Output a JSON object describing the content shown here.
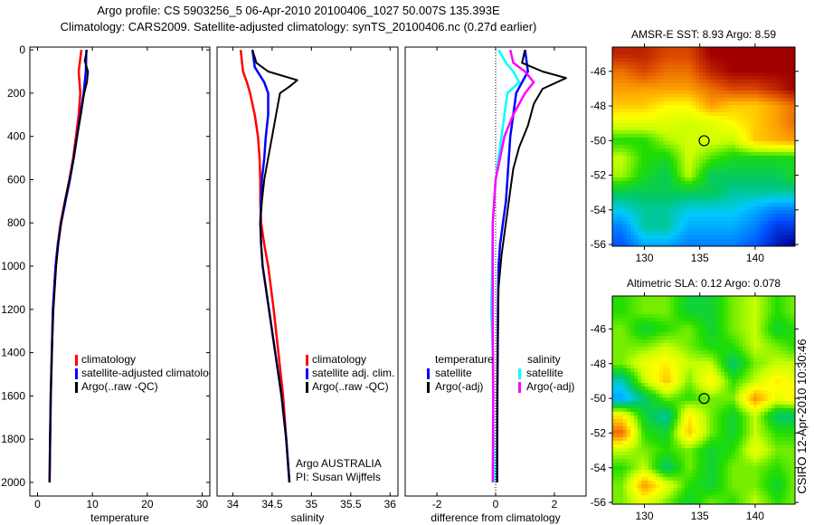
{
  "header": {
    "title_line1": "Argo profile: CS 5903256_5 06-Apr-2010 20100406_1027 50.007S 135.393E",
    "title_line2": "Climatology: CARS2009. Satellite-adjusted climatology: synTS_20100406.nc (0.27d earlier)"
  },
  "legends": {
    "temperature": [
      "climatology",
      "satellite-adjusted climatology",
      "Argo(..raw -QC)"
    ],
    "salinity": [
      "climatology",
      "satellite adj. clim.",
      "Argo(..raw -QC)"
    ],
    "difference": {
      "temp_heading": "temperature",
      "temp_items": [
        "satellite",
        "Argo(-adj)"
      ],
      "sal_heading": "salinity",
      "sal_items": [
        "satellite",
        "Argo(-adj)"
      ]
    },
    "credit_line1": "Argo AUSTRALIA",
    "credit_line2": "PI: Susan Wijffels"
  },
  "footer": {
    "timestamp": "CSIRO 12-Apr-2010 10:30:46"
  },
  "colors": {
    "red": "#ff0000",
    "blue": "#0000ff",
    "black": "#000000",
    "cyan": "#00ffff",
    "magenta": "#ff00ff"
  },
  "chart_data": [
    {
      "type": "line",
      "xlabel": "temperature",
      "ylabel": "",
      "xlim": [
        -1.4,
        31.4
      ],
      "ylim": [
        2063,
        -13
      ],
      "xticks": [
        0,
        10,
        20,
        30
      ],
      "yticks": [
        0,
        200,
        400,
        600,
        800,
        1000,
        1200,
        1400,
        1600,
        1800,
        2000
      ],
      "series": [
        {
          "name": "climatology",
          "color": "#ff0000",
          "depth": [
            0,
            100,
            200,
            300,
            400,
            500,
            600,
            700,
            800,
            900,
            1000,
            1200,
            1400,
            1600,
            1800,
            2000
          ],
          "values": [
            8.0,
            7.5,
            7.8,
            7.5,
            7.0,
            6.5,
            5.8,
            5.0,
            4.2,
            3.7,
            3.3,
            2.8,
            2.6,
            2.4,
            2.3,
            2.2
          ]
        },
        {
          "name": "satellite-adjusted climatology",
          "color": "#0000ff",
          "depth": [
            0,
            100,
            200,
            300,
            400,
            500,
            600,
            700,
            800,
            900,
            1000,
            1200,
            1400,
            1600,
            1800,
            2000
          ],
          "values": [
            8.9,
            8.8,
            8.4,
            7.8,
            7.2,
            6.6,
            5.9,
            5.1,
            4.3,
            3.7,
            3.3,
            2.8,
            2.6,
            2.4,
            2.3,
            2.2
          ]
        },
        {
          "name": "Argo(..raw -QC)",
          "color": "#000000",
          "depth": [
            0,
            50,
            100,
            150,
            200,
            300,
            400,
            500,
            600,
            700,
            800,
            900,
            1000,
            1200,
            1400,
            1600,
            1800,
            2000
          ],
          "values": [
            9.0,
            8.6,
            9.2,
            9.0,
            8.5,
            7.9,
            7.2,
            6.6,
            5.8,
            5.0,
            4.3,
            3.8,
            3.4,
            2.9,
            2.6,
            2.4,
            2.3,
            2.2
          ]
        }
      ]
    },
    {
      "type": "line",
      "xlabel": "salinity",
      "ylabel": "",
      "xlim": [
        33.8,
        36.1
      ],
      "ylim": [
        2063,
        -13
      ],
      "xticks": [
        34,
        34.5,
        35,
        35.5,
        36
      ],
      "yticks": [],
      "series": [
        {
          "name": "climatology",
          "color": "#ff0000",
          "depth": [
            0,
            100,
            150,
            200,
            300,
            400,
            500,
            600,
            700,
            800,
            900,
            1000,
            1200,
            1400,
            1600,
            1800,
            2000
          ],
          "values": [
            34.1,
            34.13,
            34.18,
            34.22,
            34.28,
            34.32,
            34.34,
            34.35,
            34.35,
            34.36,
            34.4,
            34.45,
            34.52,
            34.58,
            34.64,
            34.68,
            34.72
          ]
        },
        {
          "name": "satellite adj. clim.",
          "color": "#0000ff",
          "depth": [
            0,
            80,
            150,
            200,
            300,
            400,
            500,
            600,
            700,
            800,
            900,
            1000,
            1200,
            1400,
            1600,
            1800,
            2000
          ],
          "values": [
            34.25,
            34.28,
            34.4,
            34.45,
            34.45,
            34.42,
            34.4,
            34.37,
            34.36,
            34.35,
            34.36,
            34.38,
            34.46,
            34.54,
            34.62,
            34.68,
            34.72
          ]
        },
        {
          "name": "Argo(..raw -QC)",
          "color": "#000000",
          "depth": [
            0,
            60,
            100,
            140,
            170,
            200,
            300,
            400,
            500,
            600,
            700,
            800,
            900,
            1000,
            1200,
            1400,
            1600,
            1800,
            2000
          ],
          "values": [
            34.25,
            34.3,
            34.45,
            34.82,
            34.72,
            34.6,
            34.55,
            34.5,
            34.45,
            34.4,
            34.37,
            34.35,
            34.36,
            34.38,
            34.46,
            34.54,
            34.62,
            34.68,
            34.72
          ]
        }
      ]
    },
    {
      "type": "line",
      "xlabel": "difference from climatology",
      "ylabel": "",
      "xlim": [
        -3.08,
        3.08
      ],
      "ylim": [
        2063,
        -13
      ],
      "xticks": [
        -2,
        0,
        2
      ],
      "yticks": [],
      "zero_line": 0,
      "series": [
        {
          "name": "temperature satellite",
          "color": "#0000ff",
          "depth": [
            0,
            100,
            200,
            300,
            400,
            500,
            600,
            700,
            800,
            900,
            1000,
            1200,
            1600,
            2000
          ],
          "values": [
            1.0,
            1.1,
            0.7,
            0.6,
            0.5,
            0.45,
            0.4,
            0.35,
            0.25,
            0.15,
            0.1,
            0.08,
            0.06,
            0.05
          ]
        },
        {
          "name": "temperature Argo(-adj)",
          "color": "#000000",
          "depth": [
            0,
            60,
            100,
            130,
            180,
            250,
            350,
            450,
            550,
            650,
            750,
            850,
            950,
            1100,
            1300,
            1600,
            2000
          ],
          "values": [
            1.0,
            0.9,
            1.6,
            2.4,
            1.6,
            1.3,
            1.1,
            0.8,
            0.6,
            0.5,
            0.4,
            0.3,
            0.2,
            0.1,
            0.08,
            0.06,
            0.05
          ]
        },
        {
          "name": "salinity satellite",
          "color": "#00ffff",
          "depth": [
            0,
            60,
            100,
            150,
            200,
            300,
            400,
            500,
            600,
            700,
            800,
            1000,
            1200,
            1400,
            1700,
            2000
          ],
          "values": [
            0.1,
            0.35,
            0.6,
            0.8,
            0.4,
            0.3,
            0.2,
            0.1,
            0.0,
            -0.05,
            -0.1,
            -0.12,
            -0.15,
            -0.1,
            -0.08,
            -0.05
          ]
        },
        {
          "name": "salinity Argo(-adj)",
          "color": "#ff00ff",
          "depth": [
            0,
            60,
            100,
            150,
            200,
            300,
            400,
            500,
            600,
            700,
            800,
            1000,
            1300,
            1600,
            2000
          ],
          "values": [
            0.5,
            0.6,
            1.0,
            1.3,
            1.0,
            0.6,
            0.3,
            0.15,
            0.0,
            -0.05,
            -0.1,
            -0.1,
            -0.1,
            -0.08,
            -0.1
          ]
        }
      ]
    },
    {
      "type": "heatmap",
      "title": "AMSR-E SST: 8.93 Argo: 8.59",
      "xlim": [
        127.1,
        143.6
      ],
      "ylim": [
        -56.1,
        -44.6
      ],
      "xticks": [
        130,
        135,
        140
      ],
      "yticks": [
        -46,
        -48,
        -50,
        -52,
        -54,
        -56
      ],
      "crange": [
        2.5,
        12
      ],
      "marker": {
        "lon": 135.393,
        "lat": -50.007
      },
      "lon": [
        128,
        130,
        132,
        134,
        136,
        138,
        140,
        142,
        143.5
      ],
      "lat": [
        -45,
        -46,
        -47,
        -48,
        -49,
        -50,
        -51,
        -52,
        -53,
        -54,
        -55,
        -56
      ],
      "values": [
        [
          11.5,
          11.5,
          11,
          11,
          12,
          12,
          12,
          12,
          12
        ],
        [
          10.5,
          11,
          10.5,
          10.5,
          11.5,
          12,
          12,
          12,
          12
        ],
        [
          10,
          10,
          10,
          10,
          10.5,
          11,
          11,
          11.5,
          12
        ],
        [
          9.5,
          9.5,
          9,
          9,
          10,
          9.5,
          9.5,
          10,
          10.5
        ],
        [
          8.6,
          8.6,
          8.5,
          8.3,
          8.5,
          9,
          9.5,
          10,
          10.5
        ],
        [
          7.2,
          7.2,
          8,
          8.3,
          8.4,
          8.2,
          9.5,
          9.8,
          10
        ],
        [
          8.2,
          7.2,
          7,
          8.3,
          7.5,
          7,
          7,
          7,
          7
        ],
        [
          8,
          7,
          6.5,
          8.2,
          6.5,
          6.5,
          6.5,
          6.5,
          7
        ],
        [
          6.5,
          6.5,
          6.5,
          6.5,
          6.5,
          6,
          6,
          6,
          6
        ],
        [
          5.5,
          6,
          6,
          5.5,
          5.5,
          5.5,
          5,
          4.5,
          4.5
        ],
        [
          4.5,
          6,
          6,
          5,
          5,
          5,
          4.5,
          3.5,
          3.5
        ],
        [
          4,
          5,
          5,
          4.5,
          4.5,
          4.5,
          4,
          3,
          2.5
        ]
      ]
    },
    {
      "type": "heatmap",
      "title": "Altimetric SLA: 0.12 Argo: 0.078",
      "xlim": [
        127.1,
        143.6
      ],
      "ylim": [
        -56.1,
        -44.1
      ],
      "xticks": [
        130,
        135,
        140
      ],
      "yticks": [
        -46,
        -48,
        -50,
        -52,
        -54,
        -56
      ],
      "crange": [
        -0.5,
        0.5
      ],
      "marker": {
        "lon": 135.393,
        "lat": -50.007
      },
      "lon": [
        128,
        130,
        132,
        134,
        136,
        138,
        140,
        142,
        143.5
      ],
      "lat": [
        -45,
        -46,
        -47,
        -48,
        -49,
        -50,
        -51,
        -52,
        -53,
        -54,
        -55,
        -56
      ],
      "values": [
        [
          0,
          0.05,
          0.05,
          -0.05,
          -0.05,
          0.05,
          0.1,
          0,
          0.05
        ],
        [
          0.05,
          -0.05,
          0,
          0.05,
          -0.05,
          0.05,
          0.1,
          -0.05,
          0
        ],
        [
          0.05,
          0.05,
          0.1,
          0.05,
          -0.02,
          0,
          0.1,
          0.05,
          0
        ],
        [
          0.05,
          0.15,
          0.2,
          0.1,
          0.1,
          -0.1,
          0.05,
          0.1,
          0.1
        ],
        [
          -0.15,
          0.1,
          0.25,
          0.05,
          0.2,
          0,
          0.1,
          0.2,
          0.15
        ],
        [
          -0.25,
          -0.1,
          0.05,
          0,
          0.05,
          0.05,
          0.3,
          0.15,
          0.2
        ],
        [
          0.2,
          -0.05,
          -0.15,
          0.2,
          0.05,
          -0.05,
          0.1,
          -0.1,
          -0.1
        ],
        [
          0.35,
          0,
          -0.05,
          0.25,
          0.05,
          -0.05,
          0.1,
          0,
          0
        ],
        [
          0.1,
          0.05,
          0,
          0.05,
          -0.05,
          0,
          0.15,
          0.05,
          0.05
        ],
        [
          0,
          0.1,
          -0.1,
          0.05,
          -0.05,
          0.05,
          0.05,
          0,
          0.05
        ],
        [
          0.05,
          0.3,
          0.15,
          0,
          -0.05,
          0.05,
          0.05,
          -0.05,
          0.05
        ],
        [
          0.05,
          0.15,
          0.05,
          -0.05,
          0.05,
          0,
          0.1,
          0,
          0.05
        ]
      ]
    }
  ]
}
